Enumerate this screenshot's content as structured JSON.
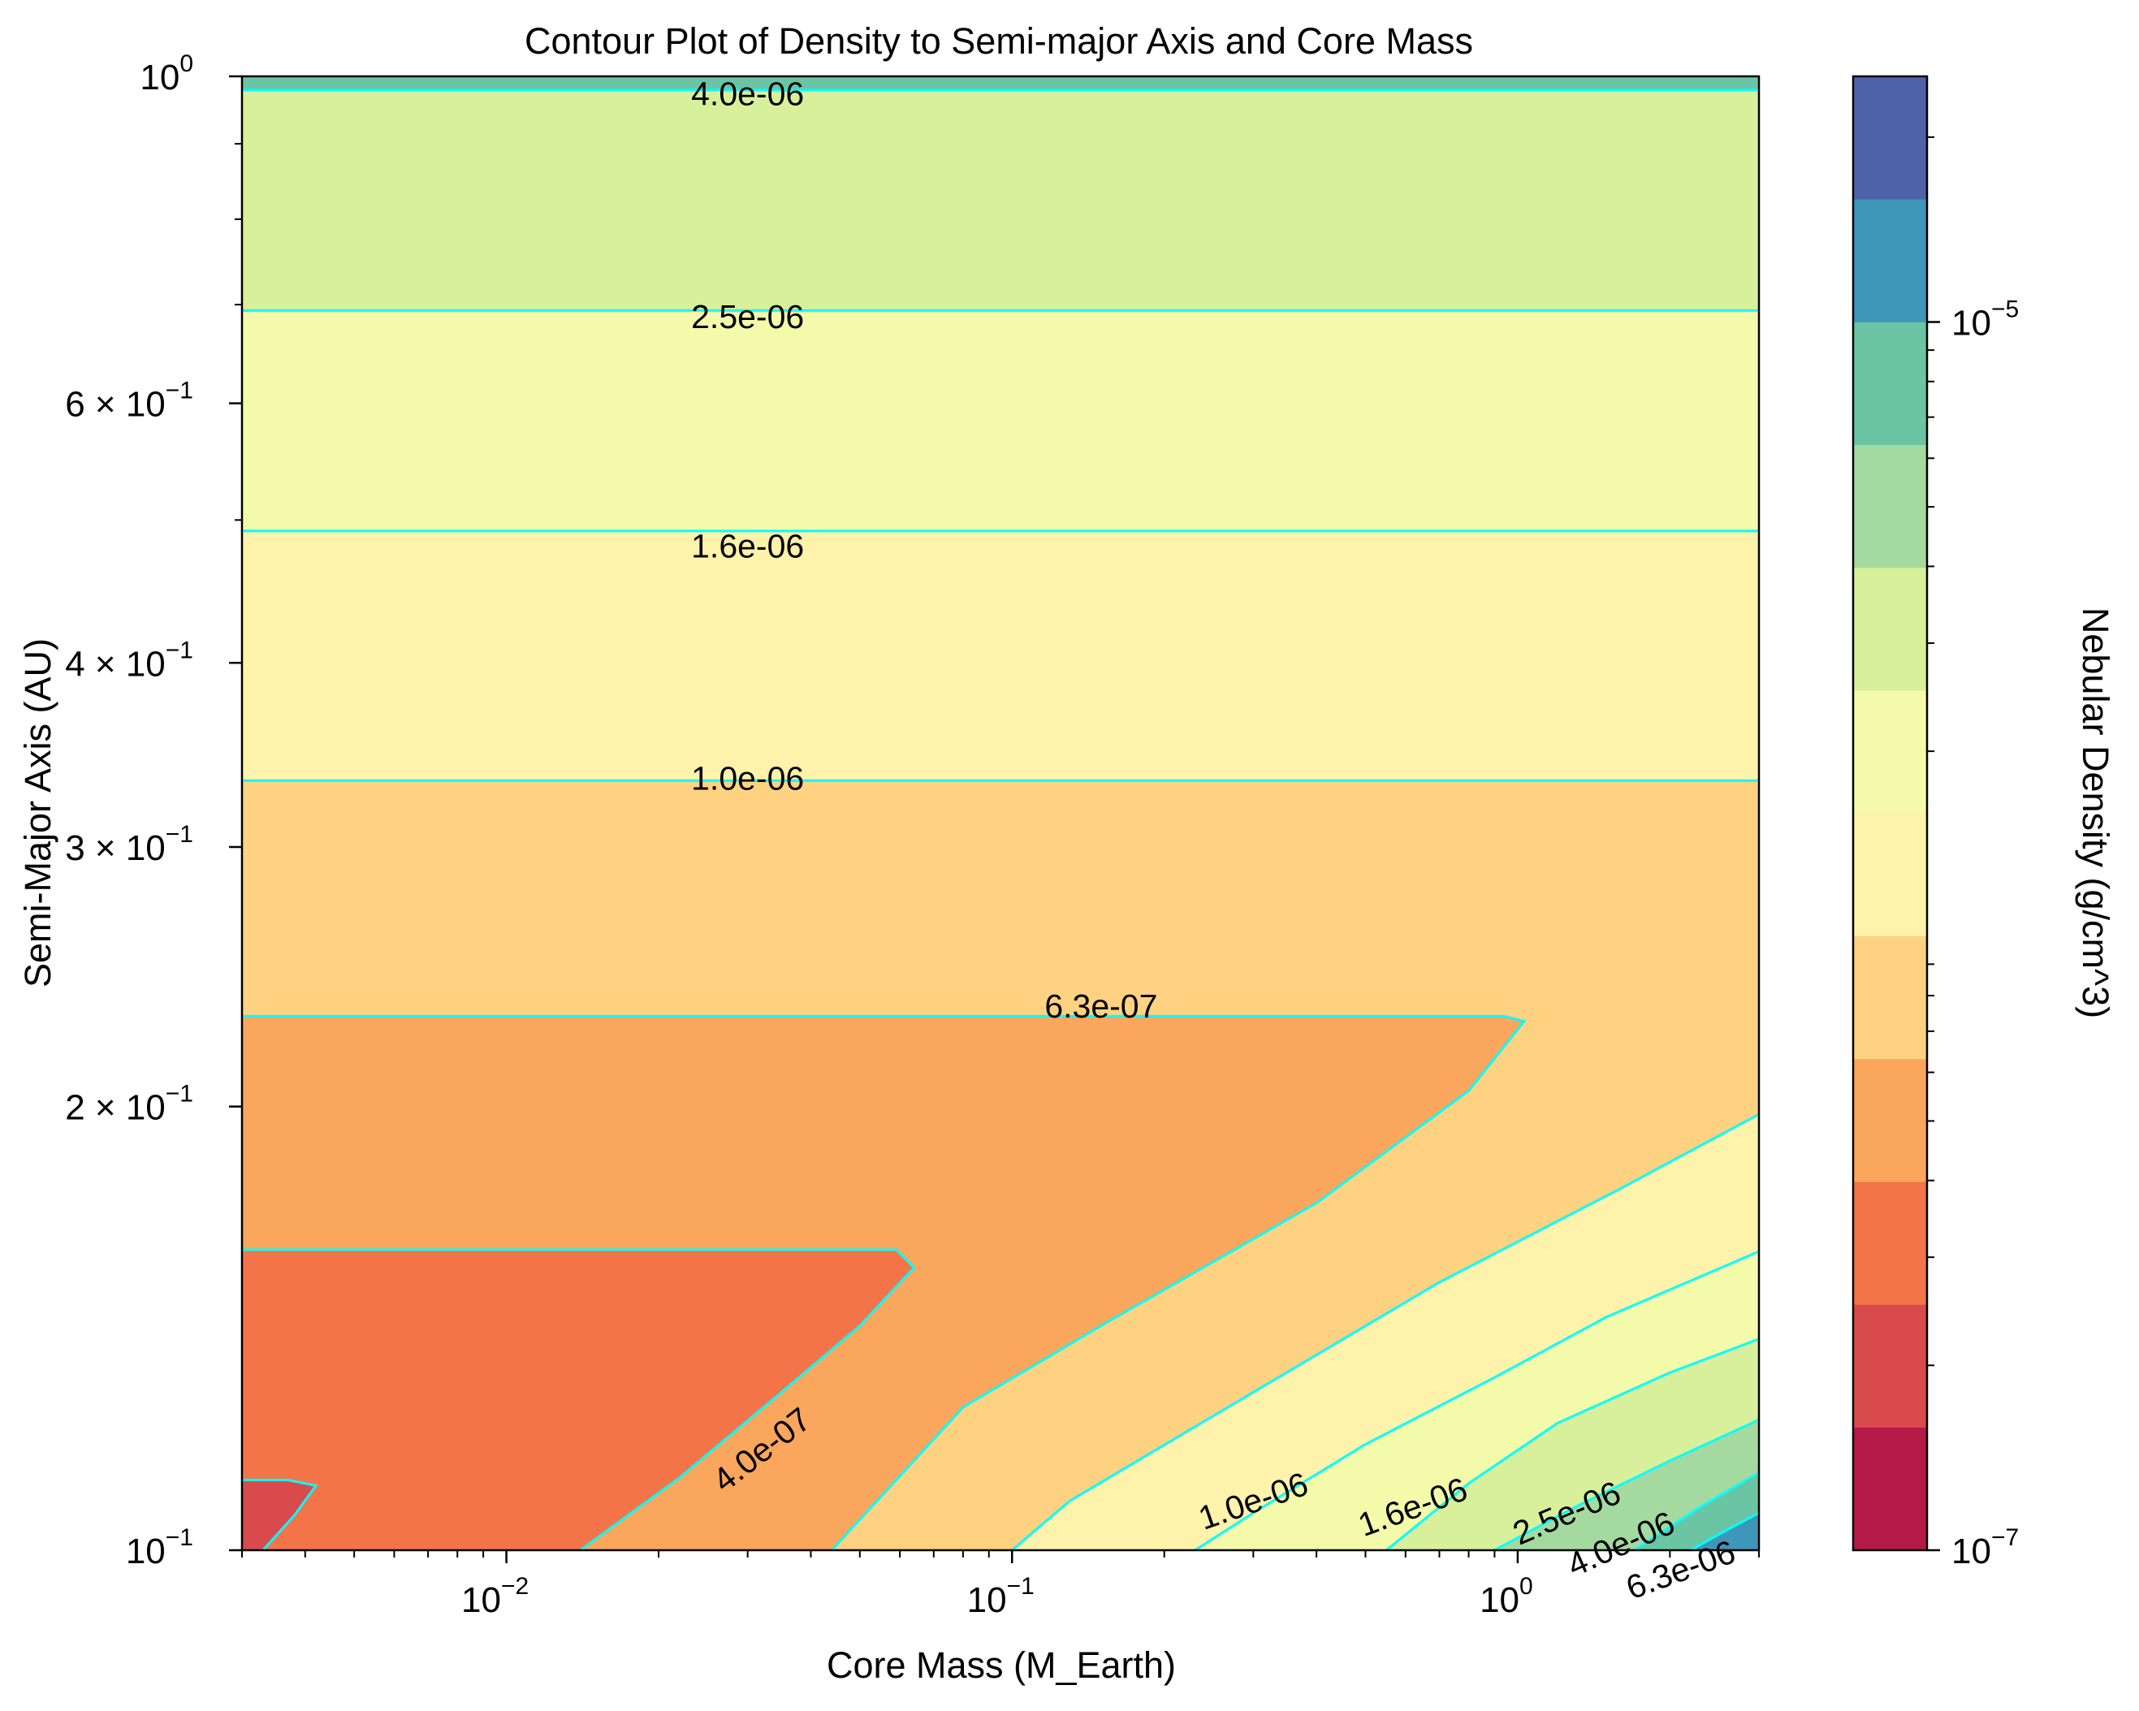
{
  "chart_data": {
    "type": "contour",
    "title": "Contour Plot of Density to Semi-major Axis and Core Mass",
    "xlabel": "Core Mass (M_Earth)",
    "ylabel": "Semi-Major Axis (AU)",
    "xscale": "log",
    "yscale": "log",
    "xlim": [
      0.003,
      3.0
    ],
    "ylim": [
      0.1,
      1.0
    ],
    "x_ticks": [
      {
        "base": "10",
        "exp": "−2",
        "value": 0.01
      },
      {
        "base": "10",
        "exp": "−1",
        "value": 0.1
      },
      {
        "base": "10",
        "exp": "0",
        "value": 1
      }
    ],
    "y_ticks": [
      {
        "base": "10",
        "exp": "−1",
        "value": 0.1
      },
      {
        "base": "2 × 10",
        "exp": "−1",
        "value": 0.2
      },
      {
        "base": "3 × 10",
        "exp": "−1",
        "value": 0.3
      },
      {
        "base": "4 × 10",
        "exp": "−1",
        "value": 0.4
      },
      {
        "base": "6 × 10",
        "exp": "−1",
        "value": 0.6
      },
      {
        "base": "10",
        "exp": "0",
        "value": 1
      }
    ],
    "contour_levels": [
      1e-07,
      1.585e-07,
      2.512e-07,
      3.981e-07,
      6.31e-07,
      1e-06,
      1.585e-06,
      2.512e-06,
      3.981e-06,
      6.31e-06,
      1e-05,
      1.585e-05,
      2.512e-05
    ],
    "fill_colors": [
      "#b41a47",
      "#d94a4c",
      "#f37449",
      "#faa65c",
      "#fed281",
      "#fff2aa",
      "#f3faa9",
      "#d8f09b",
      "#a4da9f",
      "#6bc5a5",
      "#3e96b8",
      "#4f62aa"
    ],
    "line_color": "#00ffff",
    "colorbar": {
      "label": "Nebular Density (g/cm^3)",
      "scale": "log",
      "range": [
        1e-07,
        2.512e-05
      ],
      "ticks": [
        {
          "base": "10",
          "exp": "−7",
          "value": 1e-07
        },
        {
          "base": "10",
          "exp": "−5",
          "value": 1e-05
        }
      ]
    },
    "contour_labels": [
      {
        "text": "4.0e-06",
        "x": 0.03,
        "y": 0.973
      },
      {
        "text": "2.5e-06",
        "x": 0.03,
        "y": 0.687
      },
      {
        "text": "1.6e-06",
        "x": 0.03,
        "y": 0.48
      },
      {
        "text": "1.0e-06",
        "x": 0.03,
        "y": 0.334
      },
      {
        "text": "6.3e-07",
        "x": 0.15,
        "y": 0.234
      },
      {
        "text": "4.0e-07",
        "x": 0.032,
        "y": 0.117
      },
      {
        "text": "1.0e-06",
        "x": 0.3,
        "y": 0.108
      },
      {
        "text": "1.6e-06",
        "x": 0.62,
        "y": 0.107
      },
      {
        "text": "2.5e-06",
        "x": 1.25,
        "y": 0.106
      },
      {
        "text": "4.0e-06",
        "x": 1.6,
        "y": 0.101
      },
      {
        "text": "6.3e-06",
        "x": 2.1,
        "y": 0.097
      }
    ],
    "regions": [
      {
        "color_index": 7,
        "boundary": [
          [
            0.003,
            0.6936
          ],
          [
            3.0,
            0.6936
          ],
          [
            3.0,
            0.9788
          ],
          [
            0.003,
            0.9788
          ]
        ]
      },
      {
        "color_index": 9,
        "boundary": [
          [
            0.003,
            0.9788
          ],
          [
            3.0,
            0.9788
          ],
          [
            3.0,
            1.0
          ],
          [
            0.003,
            1.0
          ]
        ]
      },
      {
        "color_index": 6,
        "boundary": [
          [
            0.003,
            0.4915
          ],
          [
            3.0,
            0.4915
          ],
          [
            3.0,
            0.6936
          ],
          [
            0.003,
            0.6936
          ]
        ]
      },
      {
        "color_index": 5,
        "boundary": [
          [
            0.003,
            0.3328
          ],
          [
            3.0,
            0.3328
          ],
          [
            3.0,
            0.4915
          ],
          [
            0.003,
            0.4915
          ]
        ]
      },
      {
        "color_index": 4,
        "boundary": [
          [
            0.003,
            0.1
          ],
          [
            3.0,
            0.1
          ],
          [
            3.0,
            0.3328
          ],
          [
            0.003,
            0.3328
          ]
        ]
      },
      {
        "color_index": 3,
        "boundary": [
          [
            0.003,
            0.2303
          ],
          [
            0.94,
            0.2303
          ],
          [
            1.03,
            0.2285
          ],
          [
            0.8,
            0.205
          ],
          [
            0.4,
            0.172
          ],
          [
            0.15,
            0.142
          ],
          [
            0.08,
            0.125
          ],
          [
            0.044,
            0.1
          ],
          [
            0.003,
            0.1
          ]
        ]
      },
      {
        "color_index": 2,
        "boundary": [
          [
            0.003,
            0.1599
          ],
          [
            0.059,
            0.1599
          ],
          [
            0.064,
            0.1555
          ],
          [
            0.05,
            0.142
          ],
          [
            0.035,
            0.128
          ],
          [
            0.022,
            0.112
          ],
          [
            0.014,
            0.1
          ],
          [
            0.003,
            0.1
          ]
        ]
      },
      {
        "color_index": 1,
        "boundary": [
          [
            0.003,
            0.1116
          ],
          [
            0.0037,
            0.1116
          ],
          [
            0.0042,
            0.1106
          ],
          [
            0.0038,
            0.1055
          ],
          [
            0.0033,
            0.1
          ],
          [
            0.003,
            0.1
          ]
        ]
      },
      {
        "color_index": 5,
        "boundary": [
          [
            3.0,
            0.1976
          ],
          [
            1.6,
            0.176
          ],
          [
            0.7,
            0.152
          ],
          [
            0.3,
            0.128
          ],
          [
            0.13,
            0.108
          ],
          [
            0.1,
            0.1
          ],
          [
            3.0,
            0.1
          ]
        ]
      },
      {
        "color_index": 6,
        "boundary": [
          [
            3.0,
            0.1595
          ],
          [
            1.5,
            0.144
          ],
          [
            0.9,
            0.131
          ],
          [
            0.5,
            0.118
          ],
          [
            0.3,
            0.106
          ],
          [
            0.23,
            0.1
          ],
          [
            3.0,
            0.1
          ]
        ]
      },
      {
        "color_index": 7,
        "boundary": [
          [
            3.0,
            0.1391
          ],
          [
            2.0,
            0.132
          ],
          [
            1.2,
            0.122
          ],
          [
            0.8,
            0.111
          ],
          [
            0.55,
            0.1
          ],
          [
            3.0,
            0.1
          ]
        ]
      },
      {
        "color_index": 8,
        "boundary": [
          [
            3.0,
            0.1226
          ],
          [
            2.0,
            0.115
          ],
          [
            1.3,
            0.107
          ],
          [
            0.9,
            0.1
          ],
          [
            3.0,
            0.1
          ]
        ]
      },
      {
        "color_index": 9,
        "boundary": [
          [
            3.0,
            0.1129
          ],
          [
            2.3,
            0.107
          ],
          [
            1.7,
            0.1
          ],
          [
            3.0,
            0.1
          ]
        ]
      },
      {
        "color_index": 10,
        "boundary": [
          [
            3.0,
            0.106
          ],
          [
            2.5,
            0.1025
          ],
          [
            2.2,
            0.1
          ],
          [
            3.0,
            0.1
          ]
        ]
      }
    ],
    "contour_lines": [
      [
        [
          0.003,
          0.9788
        ],
        [
          3.0,
          0.9788
        ]
      ],
      [
        [
          0.003,
          0.6936
        ],
        [
          3.0,
          0.6936
        ]
      ],
      [
        [
          0.003,
          0.4915
        ],
        [
          3.0,
          0.4915
        ]
      ],
      [
        [
          0.003,
          0.3328
        ],
        [
          3.0,
          0.3328
        ]
      ],
      [
        [
          0.003,
          0.2303
        ],
        [
          0.94,
          0.2303
        ],
        [
          1.03,
          0.2285
        ],
        [
          0.8,
          0.205
        ],
        [
          0.4,
          0.172
        ],
        [
          0.15,
          0.142
        ],
        [
          0.08,
          0.125
        ],
        [
          0.044,
          0.1
        ]
      ],
      [
        [
          0.003,
          0.1599
        ],
        [
          0.059,
          0.1599
        ],
        [
          0.064,
          0.1555
        ],
        [
          0.05,
          0.142
        ],
        [
          0.035,
          0.128
        ],
        [
          0.022,
          0.112
        ],
        [
          0.014,
          0.1
        ]
      ],
      [
        [
          0.003,
          0.1116
        ],
        [
          0.0037,
          0.1116
        ],
        [
          0.0042,
          0.1106
        ],
        [
          0.0038,
          0.1055
        ],
        [
          0.0033,
          0.1
        ]
      ],
      [
        [
          3.0,
          0.1976
        ],
        [
          1.6,
          0.176
        ],
        [
          0.7,
          0.152
        ],
        [
          0.3,
          0.128
        ],
        [
          0.13,
          0.108
        ],
        [
          0.1,
          0.1
        ]
      ],
      [
        [
          3.0,
          0.1595
        ],
        [
          1.5,
          0.144
        ],
        [
          0.9,
          0.131
        ],
        [
          0.5,
          0.118
        ],
        [
          0.3,
          0.106
        ],
        [
          0.23,
          0.1
        ]
      ],
      [
        [
          3.0,
          0.1391
        ],
        [
          2.0,
          0.132
        ],
        [
          1.2,
          0.122
        ],
        [
          0.8,
          0.111
        ],
        [
          0.55,
          0.1
        ]
      ],
      [
        [
          3.0,
          0.1226
        ],
        [
          2.0,
          0.115
        ],
        [
          1.3,
          0.107
        ],
        [
          0.9,
          0.1
        ]
      ],
      [
        [
          3.0,
          0.1129
        ],
        [
          2.3,
          0.107
        ],
        [
          1.7,
          0.1
        ]
      ],
      [
        [
          3.0,
          0.106
        ],
        [
          2.5,
          0.1025
        ],
        [
          2.2,
          0.1
        ]
      ]
    ]
  }
}
